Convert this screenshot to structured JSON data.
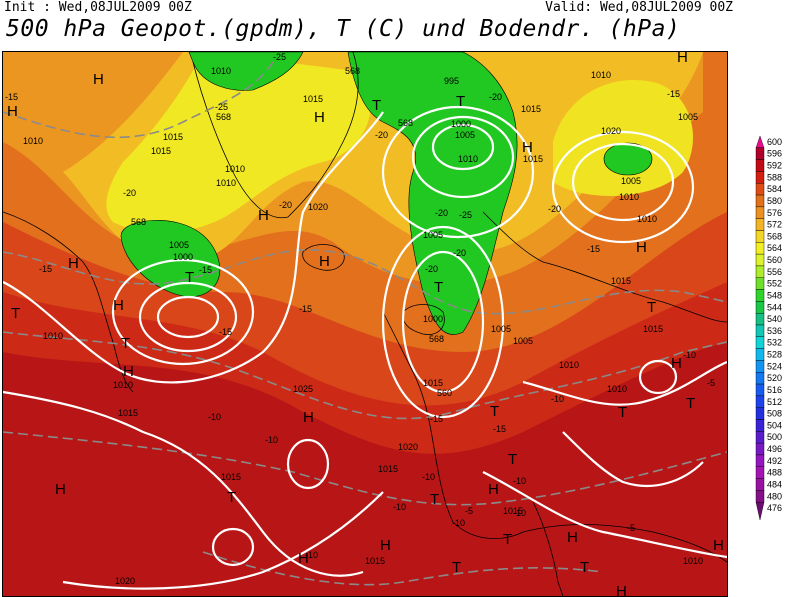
{
  "header": {
    "init": "Init : Wed,08JUL2009 00Z",
    "valid": "Valid: Wed,08JUL2009 00Z",
    "title": "500 hPa Geopot.(gpdm), T (C) und Bodendr. (hPa)"
  },
  "map": {
    "region": "North Atlantic / Europe",
    "colors": {
      "deep_red": "#a8101a",
      "red": "#c81e16",
      "orange_red": "#dc4a14",
      "orange": "#e4781a",
      "light_orange": "#ee9a22",
      "yellow_orange": "#f4c224",
      "yellow": "#f2ee22",
      "green": "#22c822",
      "contour_white": "#ffffff",
      "temp_dash_gray": "#8a8a8a",
      "coast_black": "#000000"
    },
    "pressure_labels": [
      "1010",
      "1010",
      "1015",
      "1015",
      "1015",
      "1010",
      "1020",
      "1010",
      "1005",
      "1000",
      "1010",
      "1015",
      "1010",
      "1025",
      "1015",
      "1020",
      "1015",
      "1020",
      "1015",
      "995",
      "1000",
      "1005",
      "1010",
      "1015",
      "1005",
      "1015",
      "1005",
      "1000",
      "1005",
      "1010",
      "1015",
      "1005",
      "1010",
      "1010",
      "1010",
      "1015",
      "1015",
      "1010",
      "1005",
      "1020",
      "1015",
      "1010"
    ],
    "temp_labels": [
      "-25",
      "-20",
      "-15",
      "-25",
      "-20",
      "-15",
      "-15",
      "-10",
      "-10",
      "-10",
      "-15",
      "-20",
      "-20",
      "-25",
      "-20",
      "-15",
      "-20",
      "-20",
      "-20",
      "-15",
      "-15",
      "-10",
      "-10",
      "-10",
      "-15",
      "-5",
      "-10",
      "-5",
      "-10",
      "-10",
      "-15",
      "-5",
      "-10"
    ],
    "geopot_labels": [
      "568",
      "568",
      "568",
      "568",
      "568",
      "560"
    ],
    "high_symbol": "H",
    "low_symbol": "T"
  },
  "legend": {
    "values": [
      "600",
      "596",
      "592",
      "588",
      "584",
      "580",
      "576",
      "572",
      "568",
      "564",
      "560",
      "556",
      "552",
      "548",
      "544",
      "540",
      "536",
      "532",
      "528",
      "524",
      "520",
      "516",
      "512",
      "508",
      "504",
      "500",
      "496",
      "492",
      "488",
      "484",
      "480",
      "476"
    ],
    "colors": [
      "#ea0a8c",
      "#b00028",
      "#c40a14",
      "#d41e10",
      "#e04c14",
      "#e4701a",
      "#ec9020",
      "#f2b424",
      "#f4d626",
      "#f2ee22",
      "#dcf22a",
      "#aeec2c",
      "#6ee02c",
      "#2ed42c",
      "#18c846",
      "#14c082",
      "#10c8b4",
      "#10d4d8",
      "#10b8ee",
      "#1294f2",
      "#1478f2",
      "#165cf0",
      "#1c44ec",
      "#2230e2",
      "#3a22d8",
      "#5a1ccc",
      "#7a18c6",
      "#9416c0",
      "#a414b4",
      "#9a10a0",
      "#861088",
      "#6c0c70"
    ]
  }
}
